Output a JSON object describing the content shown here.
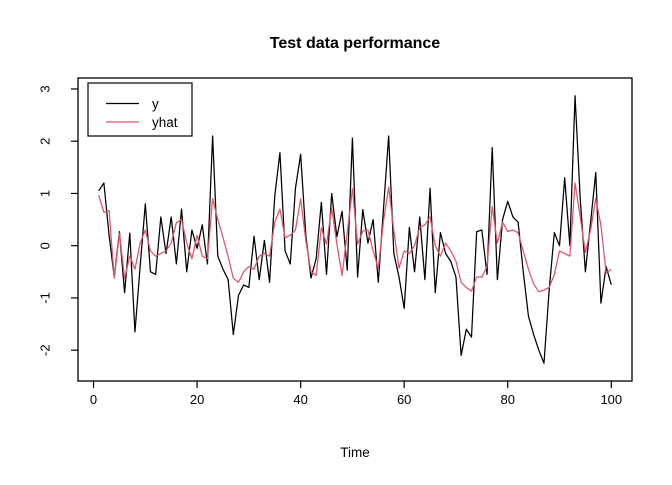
{
  "figure": {
    "background": "#ffffff",
    "frame_color": "#000000"
  },
  "chart_data": {
    "type": "line",
    "title": "Test data performance",
    "xlabel": "Time",
    "ylabel": "",
    "grid": false,
    "legend_position": "top-left",
    "xlim": [
      -3,
      104
    ],
    "ylim": [
      -2.59,
      3.21
    ],
    "xticks": [
      0,
      20,
      40,
      60,
      80,
      100
    ],
    "yticks": [
      -2,
      -1,
      0,
      1,
      2,
      3
    ],
    "x_start": 1,
    "series": [
      {
        "name": "y",
        "color": "#000000",
        "values": [
          1.05,
          1.2,
          0.2,
          -0.6,
          0.27,
          -0.9,
          0.24,
          -1.65,
          -0.4,
          0.8,
          -0.5,
          -0.55,
          0.55,
          -0.15,
          0.55,
          -0.35,
          0.7,
          -0.5,
          0.3,
          -0.05,
          0.4,
          -0.35,
          2.1,
          -0.2,
          -0.45,
          -0.65,
          -1.7,
          -0.95,
          -0.75,
          -0.8,
          0.18,
          -0.65,
          0.1,
          -0.7,
          0.95,
          1.78,
          -0.1,
          -0.35,
          1.1,
          1.75,
          0.2,
          -0.62,
          -0.25,
          0.83,
          -0.55,
          1.0,
          0.17,
          0.66,
          -0.47,
          2.06,
          -0.6,
          0.69,
          0.05,
          0.5,
          -0.7,
          0.7,
          2.1,
          -0.15,
          -0.6,
          -1.2,
          0.35,
          -0.5,
          0.55,
          -0.65,
          1.1,
          -0.9,
          0.25,
          -0.15,
          -0.3,
          -0.6,
          -2.1,
          -1.6,
          -1.75,
          0.27,
          0.3,
          -0.55,
          1.88,
          -0.65,
          0.5,
          0.85,
          0.55,
          0.45,
          -0.5,
          -1.35,
          -1.7,
          -2.0,
          -2.25,
          -0.85,
          0.25,
          0.0,
          1.3,
          0.0,
          2.87,
          0.9,
          -0.5,
          0.45,
          1.4,
          -1.1,
          -0.4,
          -0.75
        ]
      },
      {
        "name": "yhat",
        "color": "#DF536B",
        "values": [
          0.97,
          0.64,
          0.67,
          -0.62,
          0.24,
          -0.63,
          -0.2,
          -0.45,
          0.05,
          0.3,
          -0.1,
          -0.2,
          -0.15,
          -0.1,
          0.05,
          0.44,
          0.5,
          0.05,
          -0.25,
          0.2,
          -0.2,
          -0.25,
          0.9,
          0.5,
          0.16,
          -0.21,
          -0.62,
          -0.7,
          -0.5,
          -0.4,
          -0.45,
          -0.2,
          -0.15,
          -0.2,
          0.45,
          0.7,
          0.15,
          0.2,
          0.3,
          0.9,
          0.1,
          -0.5,
          -0.57,
          0.34,
          0.03,
          0.72,
          0.03,
          -0.57,
          0.25,
          1.09,
          0.03,
          0.28,
          0.3,
          -0.1,
          -0.43,
          0.47,
          1.12,
          0.28,
          -0.43,
          -0.1,
          -0.15,
          0.0,
          0.35,
          0.4,
          0.55,
          0.0,
          -0.2,
          0.05,
          -0.1,
          -0.3,
          -0.7,
          -0.8,
          -0.87,
          -0.6,
          -0.6,
          -0.4,
          0.75,
          0.05,
          0.45,
          0.27,
          0.3,
          0.25,
          -0.1,
          -0.45,
          -0.73,
          -0.88,
          -0.85,
          -0.8,
          -0.55,
          -0.1,
          -0.15,
          -0.2,
          1.2,
          0.55,
          -0.13,
          0.3,
          0.9,
          0.39,
          -0.52,
          -0.45
        ]
      }
    ]
  }
}
